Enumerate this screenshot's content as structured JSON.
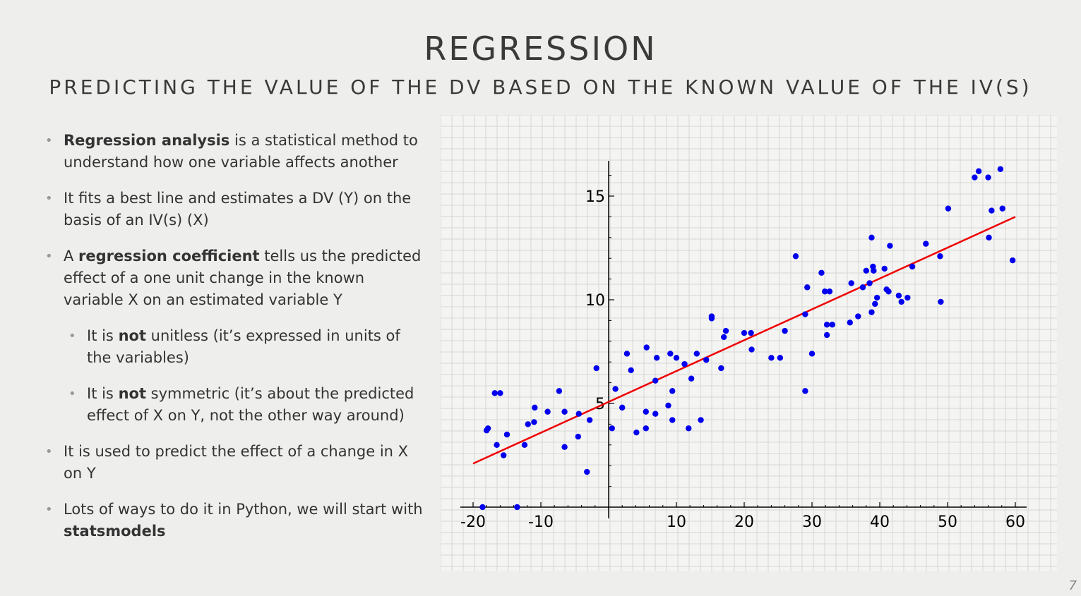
{
  "slide": {
    "title": "REGRESSION",
    "subtitle": "PREDICTING THE VALUE OF THE DV BASED ON THE KNOWN VALUE OF THE IV(S)",
    "page_number": "7"
  },
  "bullets": [
    {
      "level": 1,
      "parts": [
        {
          "t": "Regression analysis",
          "b": true
        },
        {
          "t": " is a statistical method to understand how one variable affects another",
          "b": false
        }
      ]
    },
    {
      "level": 1,
      "parts": [
        {
          "t": "It fits a best line and estimates a DV (Y) on the basis of an IV(s) (X)",
          "b": false
        }
      ]
    },
    {
      "level": 1,
      "parts": [
        {
          "t": "A ",
          "b": false
        },
        {
          "t": "regression coefficient",
          "b": true
        },
        {
          "t": " tells us the predicted effect of a one unit change in the known variable X on an estimated variable Y",
          "b": false
        }
      ]
    },
    {
      "level": 2,
      "parts": [
        {
          "t": "It is ",
          "b": false
        },
        {
          "t": "not",
          "b": true
        },
        {
          "t": " unitless (it’s expressed in units of the variables)",
          "b": false
        }
      ]
    },
    {
      "level": 2,
      "parts": [
        {
          "t": "It is ",
          "b": false
        },
        {
          "t": "not",
          "b": true
        },
        {
          "t": " symmetric (it’s about the predicted effect of X on Y, not the other way around)",
          "b": false
        }
      ]
    },
    {
      "level": 1,
      "parts": [
        {
          "t": "It is used to predict the effect of a change in X on Y",
          "b": false
        }
      ]
    },
    {
      "level": 1,
      "parts": [
        {
          "t": "Lots of ways to do it in Python, we will start with ",
          "b": false
        },
        {
          "t": "statsmodels",
          "b": true
        }
      ]
    }
  ],
  "chart_data": {
    "type": "scatter",
    "title": "",
    "xlabel": "",
    "ylabel": "",
    "xlim": [
      -21,
      62
    ],
    "ylim": [
      0,
      16.5
    ],
    "xticks": [
      "-20",
      "-10",
      "10",
      "20",
      "30",
      "40",
      "50",
      "60"
    ],
    "yticks": [
      "5",
      "10",
      "15"
    ],
    "grid": true,
    "point_color": "#0000ee",
    "line_color": "#ee0000",
    "regression_line": {
      "x": [
        -20,
        60
      ],
      "y": [
        2.1,
        14
      ]
    },
    "points": [
      [
        -18.6,
        0
      ],
      [
        -18,
        3.7
      ],
      [
        -17.8,
        3.8
      ],
      [
        -16.8,
        5.5
      ],
      [
        -16,
        5.5
      ],
      [
        -16.5,
        3
      ],
      [
        -15.5,
        2.5
      ],
      [
        -15,
        3.5
      ],
      [
        -13.5,
        0
      ],
      [
        -12.4,
        3
      ],
      [
        -11.9,
        4
      ],
      [
        -11,
        4.1
      ],
      [
        -10.9,
        4.8
      ],
      [
        -9,
        4.6
      ],
      [
        -7.3,
        5.6
      ],
      [
        -6.5,
        4.6
      ],
      [
        -6.5,
        2.9
      ],
      [
        -4.5,
        3.4
      ],
      [
        -4.4,
        4.5
      ],
      [
        -3.2,
        1.7
      ],
      [
        -2.8,
        4.2
      ],
      [
        -1.8,
        6.7
      ],
      [
        0.5,
        3.8
      ],
      [
        1,
        5.7
      ],
      [
        2,
        4.8
      ],
      [
        2.7,
        7.4
      ],
      [
        3.3,
        6.6
      ],
      [
        4.1,
        3.6
      ],
      [
        5.5,
        4.6
      ],
      [
        5.5,
        3.8
      ],
      [
        5.6,
        7.7
      ],
      [
        6.9,
        6.1
      ],
      [
        6.9,
        4.5
      ],
      [
        7.1,
        7.2
      ],
      [
        8.8,
        4.9
      ],
      [
        9.1,
        7.4
      ],
      [
        9.4,
        5.6
      ],
      [
        9.4,
        4.2
      ],
      [
        10,
        7.2
      ],
      [
        11.2,
        6.9
      ],
      [
        11.8,
        3.8
      ],
      [
        12.2,
        6.2
      ],
      [
        13,
        7.4
      ],
      [
        13.6,
        4.2
      ],
      [
        14.4,
        7.1
      ],
      [
        15.2,
        9.1
      ],
      [
        15.2,
        9.2
      ],
      [
        16.6,
        6.7
      ],
      [
        17,
        8.2
      ],
      [
        17.3,
        8.5
      ],
      [
        20,
        8.4
      ],
      [
        21,
        8.4
      ],
      [
        21.1,
        7.6
      ],
      [
        24,
        7.2
      ],
      [
        25.3,
        7.2
      ],
      [
        26,
        8.5
      ],
      [
        27.6,
        12.1
      ],
      [
        29,
        9.3
      ],
      [
        29,
        5.6
      ],
      [
        29.3,
        10.6
      ],
      [
        30,
        7.4
      ],
      [
        31.4,
        11.3
      ],
      [
        31.9,
        10.4
      ],
      [
        32.2,
        8.8
      ],
      [
        32.2,
        8.3
      ],
      [
        32.6,
        10.4
      ],
      [
        33,
        8.8
      ],
      [
        35.6,
        8.9
      ],
      [
        35.8,
        10.8
      ],
      [
        36.8,
        9.2
      ],
      [
        37.5,
        10.6
      ],
      [
        38,
        11.4
      ],
      [
        38.5,
        10.8
      ],
      [
        38.8,
        9.4
      ],
      [
        38.8,
        13
      ],
      [
        39,
        11.6
      ],
      [
        39.1,
        11.4
      ],
      [
        39.3,
        9.8
      ],
      [
        39.6,
        10.1
      ],
      [
        40.7,
        11.5
      ],
      [
        41,
        10.5
      ],
      [
        41.3,
        10.4
      ],
      [
        41.5,
        12.6
      ],
      [
        42.8,
        10.2
      ],
      [
        43.2,
        9.9
      ],
      [
        44.1,
        10.1
      ],
      [
        44.8,
        11.6
      ],
      [
        46.8,
        12.7
      ],
      [
        48.9,
        12.1
      ],
      [
        49,
        9.9
      ],
      [
        50.1,
        14.4
      ],
      [
        54,
        15.9
      ],
      [
        54.6,
        16.2
      ],
      [
        56,
        15.9
      ],
      [
        56.1,
        13
      ],
      [
        56.5,
        14.3
      ],
      [
        57.8,
        16.3
      ],
      [
        58.1,
        14.4
      ],
      [
        59.6,
        11.9
      ]
    ]
  }
}
